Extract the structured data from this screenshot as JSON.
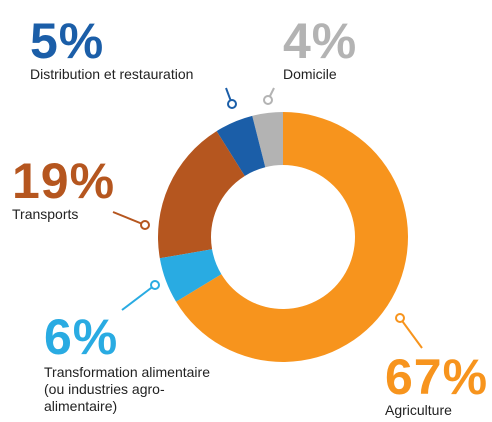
{
  "chart_data": {
    "type": "donut",
    "categories": [
      "Agriculture",
      "Transformation alimentaire (ou industries agro-alimentaire)",
      "Transports",
      "Distribution et restauration",
      "Domicile"
    ],
    "values": [
      67,
      6,
      19,
      5,
      4
    ],
    "value_labels": [
      "67%",
      "6%",
      "19%",
      "5%",
      "4%"
    ],
    "colors": [
      "#f7941d",
      "#29abe2",
      "#b5561f",
      "#1b5ea8",
      "#b3b3b3"
    ]
  }
}
